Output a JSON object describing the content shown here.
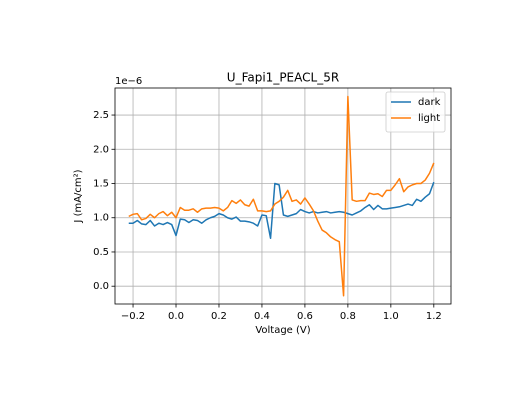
{
  "chart_data": {
    "type": "line",
    "title": "U_Fapi1_PEACL_5R",
    "xlabel": "Voltage (V)",
    "ylabel": "J (mA/cm²)",
    "y_offset_label": "1e−6",
    "x": [
      -0.22,
      -0.2,
      -0.18,
      -0.16,
      -0.14,
      -0.12,
      -0.1,
      -0.08,
      -0.06,
      -0.04,
      -0.02,
      0.0,
      0.02,
      0.04,
      0.06,
      0.08,
      0.1,
      0.12,
      0.14,
      0.16,
      0.18,
      0.2,
      0.22,
      0.24,
      0.26,
      0.28,
      0.3,
      0.32,
      0.34,
      0.36,
      0.38,
      0.4,
      0.42,
      0.44,
      0.46,
      0.48,
      0.5,
      0.52,
      0.54,
      0.56,
      0.58,
      0.6,
      0.62,
      0.64,
      0.66,
      0.68,
      0.7,
      0.72,
      0.74,
      0.76,
      0.78,
      0.8,
      0.82,
      0.84,
      0.86,
      0.88,
      0.9,
      0.92,
      0.94,
      0.96,
      0.98,
      1.0,
      1.02,
      1.04,
      1.06,
      1.08,
      1.1,
      1.12,
      1.14,
      1.16,
      1.18,
      1.2
    ],
    "series": [
      {
        "name": "dark",
        "color": "#1f77b4",
        "values": [
          0.92,
          0.92,
          0.96,
          0.91,
          0.9,
          0.96,
          0.88,
          0.92,
          0.9,
          0.93,
          0.9,
          0.74,
          0.98,
          0.97,
          0.93,
          0.97,
          0.96,
          0.92,
          0.97,
          1.0,
          1.02,
          1.06,
          1.04,
          1.0,
          0.98,
          1.01,
          0.95,
          0.95,
          0.94,
          0.92,
          0.88,
          1.04,
          1.03,
          0.7,
          1.5,
          1.48,
          1.04,
          1.02,
          1.04,
          1.06,
          1.12,
          1.09,
          1.07,
          1.09,
          1.07,
          1.08,
          1.09,
          1.07,
          1.08,
          1.09,
          1.08,
          1.06,
          1.04,
          1.07,
          1.1,
          1.15,
          1.19,
          1.12,
          1.18,
          1.13,
          1.13,
          1.14,
          1.15,
          1.16,
          1.18,
          1.2,
          1.18,
          1.27,
          1.24,
          1.3,
          1.35,
          1.52
        ]
      },
      {
        "name": "light",
        "color": "#ff7f0e",
        "values": [
          1.02,
          1.05,
          1.06,
          0.97,
          0.99,
          1.05,
          1.0,
          1.06,
          1.09,
          1.03,
          1.08,
          1.0,
          1.15,
          1.11,
          1.11,
          1.13,
          1.08,
          1.13,
          1.14,
          1.14,
          1.15,
          1.14,
          1.1,
          1.15,
          1.25,
          1.21,
          1.26,
          1.19,
          1.17,
          1.27,
          1.1,
          1.1,
          1.09,
          1.1,
          1.2,
          1.24,
          1.3,
          1.4,
          1.24,
          1.26,
          1.2,
          1.29,
          1.2,
          1.1,
          0.95,
          0.82,
          0.78,
          0.72,
          0.68,
          0.65,
          -0.14,
          2.77,
          1.26,
          1.24,
          1.25,
          1.25,
          1.36,
          1.34,
          1.35,
          1.31,
          1.4,
          1.4,
          1.48,
          1.57,
          1.38,
          1.45,
          1.48,
          1.5,
          1.5,
          1.55,
          1.65,
          1.8
        ]
      }
    ],
    "xlim": [
      -0.284,
      1.28
    ],
    "ylim": [
      -0.26,
      2.895
    ],
    "xticks": [
      {
        "value": -0.2,
        "label": "−0.2"
      },
      {
        "value": 0,
        "label": "0.0"
      },
      0.2,
      0.4,
      0.6,
      0.8,
      {
        "value": 1,
        "label": "1.0"
      },
      1.2
    ],
    "yticks": [
      {
        "value": 0,
        "label": "0.0"
      },
      0.5,
      {
        "value": 1,
        "label": "1.0"
      },
      1.5,
      {
        "value": 2,
        "label": "2.0"
      },
      2.5
    ],
    "grid": true,
    "legend": "upper right"
  }
}
